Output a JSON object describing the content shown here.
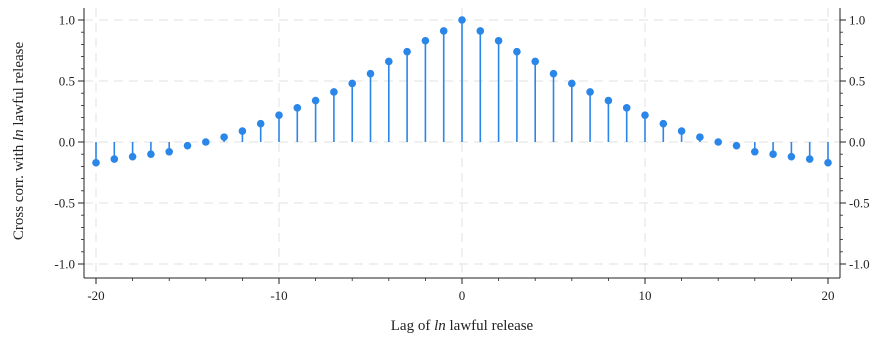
{
  "chart_data": {
    "type": "stem",
    "xlabel": {
      "prefix": "Lag of ",
      "italic": "ln",
      "suffix": " lawful release"
    },
    "ylabel": {
      "prefix": "Cross corr. with ",
      "italic": "ln",
      "suffix": " lawful release"
    },
    "xlim": [
      -20,
      20
    ],
    "ylim": [
      -1.0,
      1.0
    ],
    "x_ticks": [
      -20,
      -10,
      0,
      10,
      20
    ],
    "y_ticks": [
      -1.0,
      -0.5,
      0.0,
      0.5,
      1.0
    ],
    "y_tick_labels": [
      "-1.0",
      "-0.5",
      "0.0",
      "0.5",
      "1.0"
    ],
    "grid": true,
    "colors": {
      "series": "#2a86e8",
      "grid": "#e6e6e6",
      "axis": "#222222"
    },
    "x": [
      -20,
      -19,
      -18,
      -17,
      -16,
      -15,
      -14,
      -13,
      -12,
      -11,
      -10,
      -9,
      -8,
      -7,
      -6,
      -5,
      -4,
      -3,
      -2,
      -1,
      0,
      1,
      2,
      3,
      4,
      5,
      6,
      7,
      8,
      9,
      10,
      11,
      12,
      13,
      14,
      15,
      16,
      17,
      18,
      19,
      20
    ],
    "values": [
      -0.17,
      -0.14,
      -0.12,
      -0.1,
      -0.08,
      -0.03,
      0.0,
      0.04,
      0.09,
      0.15,
      0.22,
      0.28,
      0.34,
      0.41,
      0.48,
      0.56,
      0.66,
      0.74,
      0.83,
      0.91,
      1.0,
      0.91,
      0.83,
      0.74,
      0.66,
      0.56,
      0.48,
      0.41,
      0.34,
      0.28,
      0.22,
      0.15,
      0.09,
      0.04,
      0.0,
      -0.03,
      -0.08,
      -0.1,
      -0.12,
      -0.14,
      -0.17
    ]
  }
}
